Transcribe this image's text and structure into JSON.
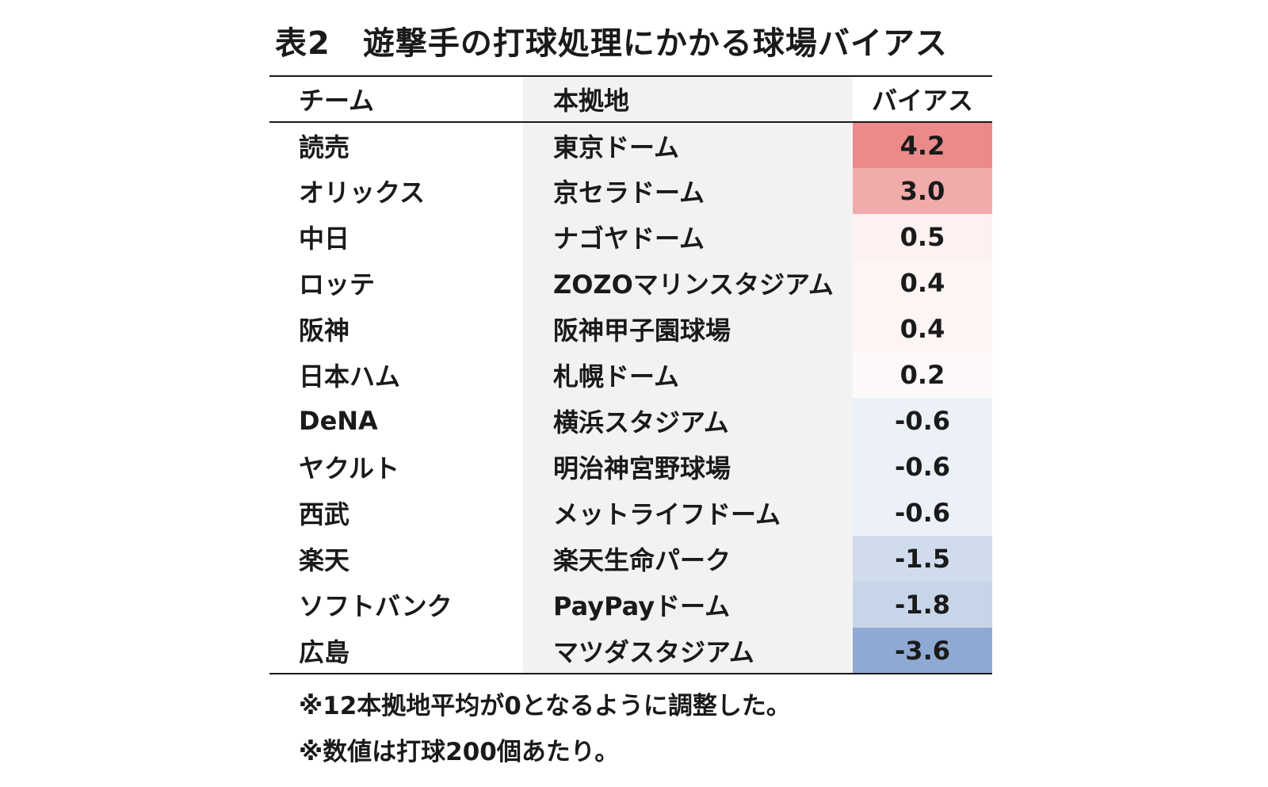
{
  "title": "表2　遊撃手の打球処理にかかる球場バイアス",
  "headers": {
    "team": "チーム",
    "stadium": "本拠地",
    "bias": "バイアス"
  },
  "colors": {
    "positive_max": "#ec8a8a",
    "negative_max": "#8eaad3",
    "neutral": "#ffffff",
    "stadium_column_bg": "#f2f2f2"
  },
  "rows": [
    {
      "team": "読売",
      "stadium": "東京ドーム",
      "bias": "4.2",
      "bias_value": 4.2
    },
    {
      "team": "オリックス",
      "stadium": "京セラドーム",
      "bias": "3.0",
      "bias_value": 3.0
    },
    {
      "team": "中日",
      "stadium": "ナゴヤドーム",
      "bias": "0.5",
      "bias_value": 0.5
    },
    {
      "team": "ロッテ",
      "stadium": "ZOZOマリンスタジアム",
      "bias": "0.4",
      "bias_value": 0.4
    },
    {
      "team": "阪神",
      "stadium": "阪神甲子園球場",
      "bias": "0.4",
      "bias_value": 0.4
    },
    {
      "team": "日本ハム",
      "stadium": "札幌ドーム",
      "bias": "0.2",
      "bias_value": 0.2
    },
    {
      "team": "DeNA",
      "stadium": "横浜スタジアム",
      "bias": "-0.6",
      "bias_value": -0.6
    },
    {
      "team": "ヤクルト",
      "stadium": "明治神宮野球場",
      "bias": "-0.6",
      "bias_value": -0.6
    },
    {
      "team": "西武",
      "stadium": "メットライフドーム",
      "bias": "-0.6",
      "bias_value": -0.6
    },
    {
      "team": "楽天",
      "stadium": "楽天生命パーク",
      "bias": "-1.5",
      "bias_value": -1.5
    },
    {
      "team": "ソフトバンク",
      "stadium": "PayPayドーム",
      "bias": "-1.8",
      "bias_value": -1.8
    },
    {
      "team": "広島",
      "stadium": "マツダスタジアム",
      "bias": "-3.6",
      "bias_value": -3.6
    }
  ],
  "notes": [
    "※12本拠地平均が0となるように調整した。",
    "※数値は打球200個あたり。"
  ]
}
